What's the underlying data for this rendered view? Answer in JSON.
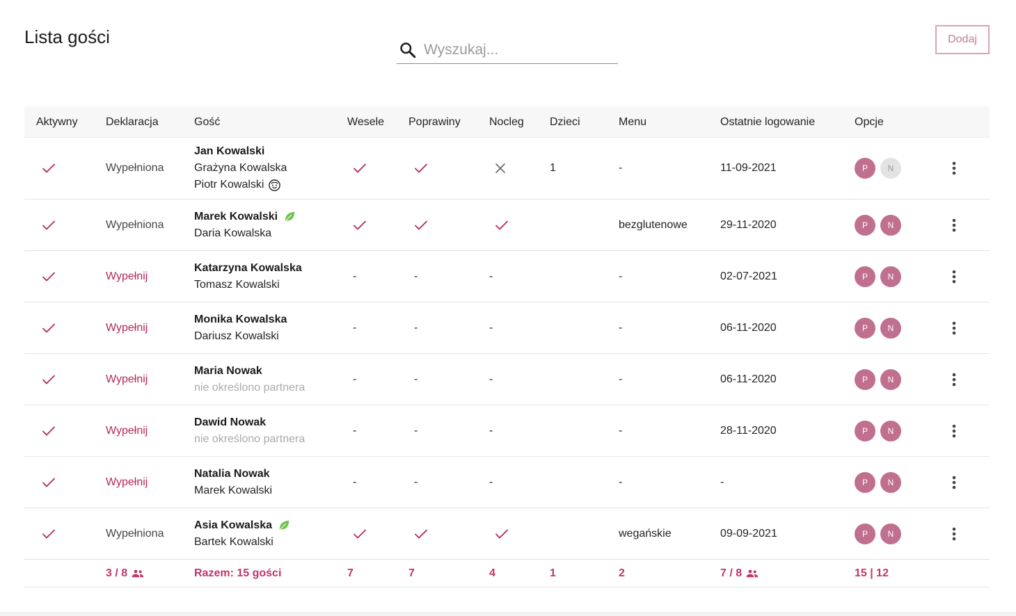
{
  "header": {
    "title": "Lista gości",
    "search_placeholder": "Wyszukaj...",
    "search_value": "",
    "add_label": "Dodaj"
  },
  "columns": [
    "Aktywny",
    "Deklaracja",
    "Gość",
    "Wesele",
    "Poprawiny",
    "Nocleg",
    "Dzieci",
    "Menu",
    "Ostatnie logowanie",
    "Opcje"
  ],
  "rows": [
    {
      "active": true,
      "declaration": "Wypełniona",
      "declaration_state": "done",
      "guests": [
        {
          "name": "Jan Kowalski",
          "style": "main"
        },
        {
          "name": "Grażyna Kowalska",
          "style": "normal"
        },
        {
          "name": "Piotr Kowalski",
          "style": "normal",
          "icon": "child-face-icon"
        }
      ],
      "wesele": "check",
      "poprawiny": "check",
      "nocleg": "cross",
      "dzieci": "1",
      "menu": "-",
      "last_login": "11-09-2021",
      "badges": [
        {
          "label": "P",
          "on": true
        },
        {
          "label": "N",
          "on": false
        }
      ]
    },
    {
      "active": true,
      "declaration": "Wypełniona",
      "declaration_state": "done",
      "guests": [
        {
          "name": "Marek Kowalski",
          "style": "main",
          "icon": "leaf-icon"
        },
        {
          "name": "Daria Kowalska",
          "style": "normal"
        }
      ],
      "wesele": "check",
      "poprawiny": "check",
      "nocleg": "check",
      "dzieci": "",
      "menu": "bezglutenowe",
      "last_login": "29-11-2020",
      "badges": [
        {
          "label": "P",
          "on": true
        },
        {
          "label": "N",
          "on": true
        }
      ]
    },
    {
      "active": true,
      "declaration": "Wypełnij",
      "declaration_state": "fill",
      "guests": [
        {
          "name": "Katarzyna Kowalska",
          "style": "main"
        },
        {
          "name": "Tomasz Kowalski",
          "style": "normal"
        }
      ],
      "wesele": "-",
      "poprawiny": "-",
      "nocleg": "-",
      "dzieci": "",
      "menu": "-",
      "last_login": "02-07-2021",
      "badges": [
        {
          "label": "P",
          "on": true
        },
        {
          "label": "N",
          "on": true
        }
      ]
    },
    {
      "active": true,
      "declaration": "Wypełnij",
      "declaration_state": "fill",
      "guests": [
        {
          "name": "Monika Kowalska",
          "style": "main"
        },
        {
          "name": "Dariusz Kowalski",
          "style": "normal"
        }
      ],
      "wesele": "-",
      "poprawiny": "-",
      "nocleg": "-",
      "dzieci": "",
      "menu": "-",
      "last_login": "06-11-2020",
      "badges": [
        {
          "label": "P",
          "on": true
        },
        {
          "label": "N",
          "on": true
        }
      ]
    },
    {
      "active": true,
      "declaration": "Wypełnij",
      "declaration_state": "fill",
      "guests": [
        {
          "name": "Maria Nowak",
          "style": "main"
        },
        {
          "name": "nie określono partnera",
          "style": "muted"
        }
      ],
      "wesele": "-",
      "poprawiny": "-",
      "nocleg": "-",
      "dzieci": "",
      "menu": "-",
      "last_login": "06-11-2020",
      "badges": [
        {
          "label": "P",
          "on": true
        },
        {
          "label": "N",
          "on": true
        }
      ]
    },
    {
      "active": true,
      "declaration": "Wypełnij",
      "declaration_state": "fill",
      "guests": [
        {
          "name": "Dawid Nowak",
          "style": "main"
        },
        {
          "name": "nie określono partnera",
          "style": "muted"
        }
      ],
      "wesele": "-",
      "poprawiny": "-",
      "nocleg": "-",
      "dzieci": "",
      "menu": "-",
      "last_login": "28-11-2020",
      "badges": [
        {
          "label": "P",
          "on": true
        },
        {
          "label": "N",
          "on": true
        }
      ]
    },
    {
      "active": true,
      "declaration": "Wypełnij",
      "declaration_state": "fill",
      "guests": [
        {
          "name": "Natalia Nowak",
          "style": "main"
        },
        {
          "name": "Marek Kowalski",
          "style": "normal"
        }
      ],
      "wesele": "-",
      "poprawiny": "-",
      "nocleg": "-",
      "dzieci": "",
      "menu": "-",
      "last_login": "-",
      "badges": [
        {
          "label": "P",
          "on": true
        },
        {
          "label": "N",
          "on": true
        }
      ]
    },
    {
      "active": true,
      "declaration": "Wypełniona",
      "declaration_state": "done",
      "guests": [
        {
          "name": "Asia Kowalska",
          "style": "main",
          "icon": "leaf-icon"
        },
        {
          "name": "Bartek Kowalski",
          "style": "normal"
        }
      ],
      "wesele": "check",
      "poprawiny": "check",
      "nocleg": "check",
      "dzieci": "",
      "menu": "wegańskie",
      "last_login": "09-09-2021",
      "badges": [
        {
          "label": "P",
          "on": true
        },
        {
          "label": "N",
          "on": true
        }
      ]
    }
  ],
  "summary": {
    "declarations": "3 / 8",
    "total": "Razem: 15 gości",
    "wesele": "7",
    "poprawiny": "7",
    "nocleg": "4",
    "dzieci": "1",
    "menu": "2",
    "logins": "7 / 8",
    "options": "15 | 12"
  },
  "colors": {
    "accent": "#b5275a",
    "badge_on": "#c0708e",
    "badge_off": "#e3e3e3",
    "leaf": "#6cc24a",
    "add_border": "#d9a3b6"
  }
}
